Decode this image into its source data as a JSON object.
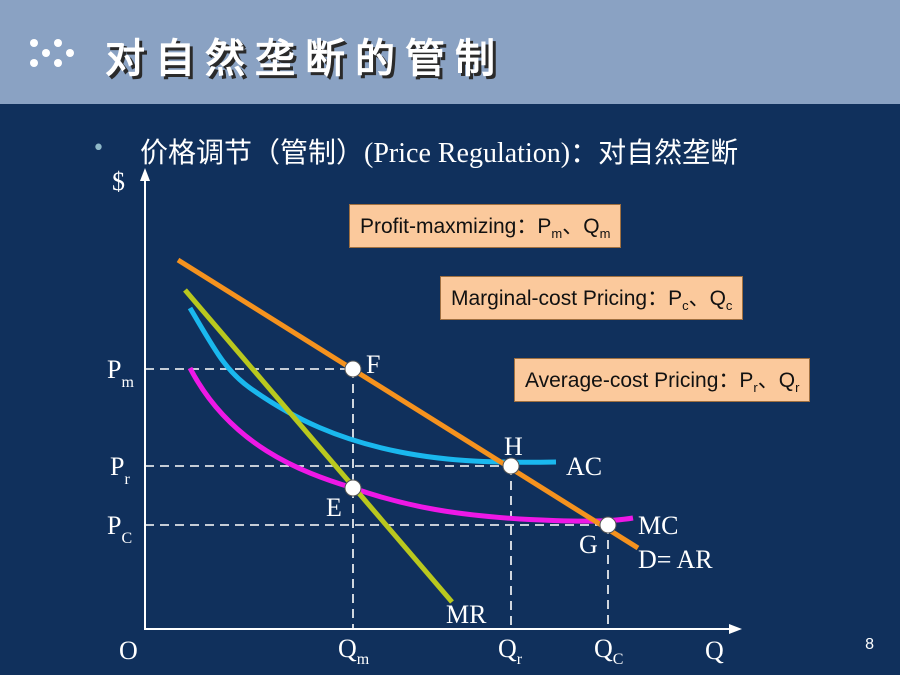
{
  "slide": {
    "title": "对自然垄断的管制",
    "bullet_cn1": "价格调节（管制）",
    "bullet_en": "(Price Regulation)",
    "bullet_cn2": "：对自然垄断",
    "page_number": "8"
  },
  "boxes": {
    "profit": {
      "text": "Profit-maxmizing：P",
      "sub1": "m",
      "sep": "、Q",
      "sub2": "m"
    },
    "marginal": {
      "text": "Marginal-cost Pricing：P",
      "sub1": "c",
      "sep": "、Q",
      "sub2": "c"
    },
    "average": {
      "text": "Average-cost Pricing：P",
      "sub1": "r",
      "sep": "、Q",
      "sub2": "r"
    }
  },
  "axes": {
    "y_label": "$",
    "x_label": "Q",
    "origin": "O",
    "y_ticks": [
      {
        "main": "P",
        "sub": "m"
      },
      {
        "main": "P",
        "sub": "r"
      },
      {
        "main": "P",
        "sub": "C"
      }
    ],
    "x_ticks": [
      {
        "main": "Q",
        "sub": "m"
      },
      {
        "main": "Q",
        "sub": "r"
      },
      {
        "main": "Q",
        "sub": "C"
      }
    ]
  },
  "curves": {
    "ac": "AC",
    "mc": "MC",
    "mr": "MR",
    "demand": "D= AR"
  },
  "points": {
    "f": "F",
    "h": "H",
    "e": "E",
    "g": "G"
  },
  "colors": {
    "demand": "#f5921e",
    "mr": "#b9c81e",
    "ac": "#1ab8ee",
    "mc": "#ee18e6",
    "background": "#10305c",
    "header": "#8aa2c3",
    "box_fill": "#fbc99c"
  }
}
